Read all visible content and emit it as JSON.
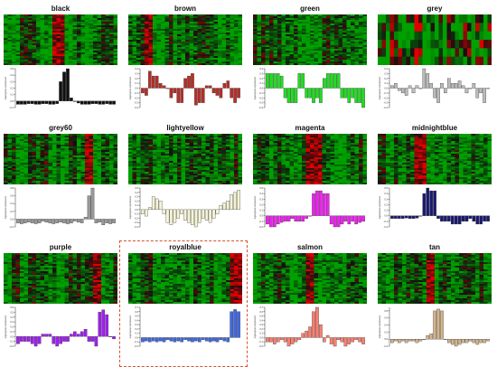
{
  "figure": {
    "highlight_color": "#d9502e",
    "heatmap_low_color": "#00a000",
    "heatmap_high_color": "#e00000",
    "heatmap_mid_color": "#101010"
  },
  "chart_data": [
    {
      "type": "heatmap+bar",
      "title": "black",
      "color": "#111111",
      "ylabel": "eigengene expression",
      "values": [
        -0.05,
        -0.05,
        -0.05,
        -0.04,
        -0.04,
        -0.05,
        -0.05,
        -0.04,
        -0.04,
        -0.05,
        -0.05,
        -0.04,
        0.3,
        0.45,
        0.5,
        0.05,
        0.0,
        -0.03,
        -0.05,
        -0.05,
        -0.05,
        -0.04,
        -0.04,
        -0.05,
        -0.05,
        -0.04,
        -0.05,
        -0.05
      ],
      "ylim": [
        -0.1,
        0.5
      ],
      "hot_columns": [
        12,
        13,
        14
      ]
    },
    {
      "type": "heatmap+bar",
      "title": "brown",
      "color": "#b5302a",
      "ylabel": "eigengene expression",
      "values": [
        -0.1,
        -0.15,
        0.35,
        0.25,
        0.25,
        0.1,
        0.05,
        0.0,
        -0.2,
        -0.1,
        -0.3,
        -0.3,
        0.2,
        0.25,
        0.3,
        -0.35,
        -0.3,
        -0.3,
        0.05,
        0.05,
        -0.1,
        -0.15,
        -0.2,
        0.1,
        0.15,
        -0.2,
        -0.3,
        -0.2
      ],
      "ylim": [
        -0.4,
        0.4
      ],
      "hot_columns": [
        4,
        5
      ]
    },
    {
      "type": "heatmap+bar",
      "title": "green",
      "color": "#22dd22",
      "ylabel": "eigengene expression",
      "values": [
        0.3,
        0.3,
        0.3,
        0.3,
        0.25,
        -0.2,
        -0.3,
        -0.3,
        -0.3,
        0.3,
        0.3,
        -0.2,
        -0.2,
        -0.3,
        -0.2,
        -0.3,
        0.2,
        0.3,
        0.3,
        0.3,
        0.3,
        -0.2,
        -0.2,
        -0.3,
        -0.2,
        -0.3,
        -0.3,
        -0.4
      ],
      "ylim": [
        -0.4,
        0.4
      ],
      "hot_columns": []
    },
    {
      "type": "heatmap+bar",
      "title": "grey",
      "color": "#bbbbbb",
      "ylabel": "eigengene expression",
      "values": [
        0.05,
        0.1,
        -0.05,
        -0.1,
        -0.15,
        0.05,
        -0.1,
        0.05,
        0.0,
        0.4,
        0.3,
        0.1,
        -0.2,
        -0.3,
        0.1,
        -0.1,
        0.2,
        0.1,
        0.1,
        0.15,
        0.05,
        -0.1,
        0.0,
        0.1,
        -0.2,
        -0.1,
        -0.3,
        0.0
      ],
      "ylim": [
        -0.4,
        0.4
      ],
      "hot_columns": [
        3,
        9,
        10
      ]
    },
    {
      "type": "heatmap+bar",
      "title": "grey60",
      "color": "#999999",
      "ylabel": "eigengene expression",
      "values": [
        -0.1,
        -0.12,
        -0.1,
        -0.08,
        -0.1,
        -0.12,
        -0.1,
        -0.05,
        -0.08,
        -0.1,
        -0.12,
        -0.1,
        -0.08,
        -0.1,
        -0.12,
        -0.1,
        -0.05,
        -0.08,
        -0.1,
        0.05,
        0.6,
        0.8,
        -0.1,
        -0.08,
        -0.15,
        -0.1,
        -0.12,
        -0.1
      ],
      "ylim": [
        -0.2,
        0.8
      ],
      "hot_columns": [
        20,
        21
      ]
    },
    {
      "type": "heatmap+bar",
      "title": "lightyellow",
      "color": "#f5f3d6",
      "ylabel": "eigengene expression",
      "values": [
        -0.1,
        -0.15,
        0.05,
        0.3,
        0.25,
        0.2,
        -0.1,
        -0.3,
        -0.35,
        -0.3,
        -0.2,
        -0.1,
        -0.25,
        -0.3,
        -0.35,
        -0.4,
        -0.3,
        -0.2,
        -0.25,
        -0.3,
        -0.2,
        -0.1,
        0.1,
        0.15,
        0.2,
        0.35,
        0.4,
        0.45
      ],
      "ylim": [
        -0.4,
        0.5
      ],
      "hot_columns": []
    },
    {
      "type": "heatmap+bar",
      "title": "magenta",
      "color": "#ee22ee",
      "ylabel": "eigengene expression",
      "values": [
        -0.15,
        -0.2,
        -0.2,
        -0.15,
        -0.12,
        -0.1,
        -0.1,
        -0.05,
        -0.1,
        -0.1,
        -0.1,
        -0.05,
        0.0,
        0.4,
        0.45,
        0.45,
        0.4,
        0.4,
        -0.15,
        -0.2,
        -0.2,
        -0.15,
        -0.1,
        -0.15,
        -0.1,
        -0.15,
        -0.12,
        -0.1
      ],
      "ylim": [
        -0.2,
        0.5
      ],
      "hot_columns": [
        13,
        14,
        15,
        16
      ]
    },
    {
      "type": "heatmap+bar",
      "title": "midnightblue",
      "color": "#191970",
      "ylabel": "eigengene expression",
      "values": [
        -0.05,
        -0.05,
        -0.05,
        -0.05,
        -0.04,
        -0.05,
        -0.05,
        -0.04,
        0.0,
        0.4,
        0.5,
        0.45,
        0.45,
        -0.05,
        -0.1,
        -0.1,
        -0.1,
        -0.15,
        -0.15,
        -0.15,
        -0.1,
        -0.1,
        -0.05,
        -0.1,
        -0.15,
        -0.15,
        -0.1,
        -0.1
      ],
      "ylim": [
        -0.2,
        0.5
      ],
      "hot_columns": [
        9,
        10,
        11
      ]
    },
    {
      "type": "heatmap+bar",
      "title": "purple",
      "color": "#a020f0",
      "ylabel": "eigengene expression",
      "values": [
        -0.15,
        -0.1,
        -0.1,
        -0.1,
        -0.15,
        -0.2,
        -0.15,
        0.05,
        0.05,
        0.05,
        -0.15,
        -0.2,
        -0.15,
        -0.1,
        -0.1,
        0.05,
        0.1,
        0.05,
        0.1,
        0.15,
        -0.1,
        -0.1,
        -0.2,
        0.5,
        0.55,
        0.45,
        0.0,
        -0.05
      ],
      "ylim": [
        -0.2,
        0.6
      ],
      "hot_columns": [
        22,
        23
      ]
    },
    {
      "type": "heatmap+bar",
      "title": "royalblue",
      "color": "#4169e1",
      "ylabel": "eigengene expression",
      "values": [
        -0.1,
        -0.08,
        -0.1,
        -0.08,
        -0.1,
        -0.08,
        -0.1,
        -0.05,
        -0.08,
        -0.1,
        -0.08,
        -0.1,
        -0.05,
        -0.08,
        -0.1,
        -0.08,
        -0.1,
        -0.05,
        -0.08,
        -0.1,
        -0.08,
        -0.1,
        -0.05,
        -0.08,
        -0.1,
        0.6,
        0.65,
        0.6
      ],
      "ylim": [
        -0.2,
        0.7
      ],
      "hot_columns": [
        25,
        26,
        27
      ]
    },
    {
      "type": "heatmap+bar",
      "title": "salmon",
      "color": "#fa8072",
      "ylabel": "eigengene expression",
      "values": [
        -0.1,
        -0.1,
        -0.15,
        -0.1,
        -0.05,
        -0.1,
        -0.2,
        -0.15,
        -0.1,
        -0.05,
        0.1,
        0.15,
        0.25,
        0.6,
        0.7,
        0.3,
        -0.1,
        0.05,
        -0.15,
        -0.2,
        -0.05,
        -0.1,
        -0.2,
        -0.15,
        -0.1,
        -0.05,
        -0.1,
        -0.15
      ],
      "ylim": [
        -0.2,
        0.7
      ],
      "hot_columns": [
        13,
        14
      ]
    },
    {
      "type": "heatmap+bar",
      "title": "tan",
      "color": "#d2b48c",
      "ylabel": "eigengene expression",
      "values": [
        -0.1,
        -0.05,
        -0.1,
        -0.05,
        -0.1,
        -0.05,
        -0.05,
        -0.1,
        -0.05,
        0.0,
        0.1,
        0.15,
        0.8,
        0.85,
        0.8,
        0.0,
        -0.1,
        -0.15,
        -0.2,
        -0.15,
        -0.1,
        -0.1,
        -0.05,
        -0.1,
        -0.15,
        -0.1,
        -0.1,
        -0.05
      ],
      "ylim": [
        -0.2,
        0.9
      ],
      "hot_columns": [
        12,
        13
      ]
    }
  ]
}
